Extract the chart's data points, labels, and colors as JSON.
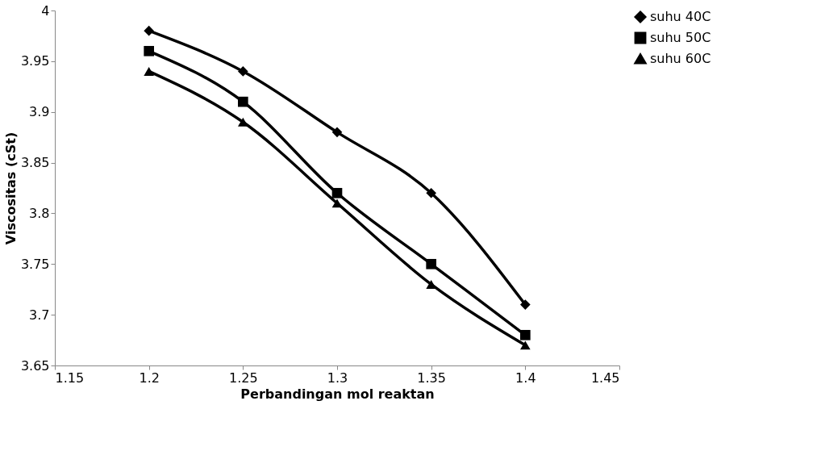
{
  "chart_data": {
    "type": "line",
    "xlabel": "Perbandingan mol reaktan",
    "ylabel": "Viscositas (cSt)",
    "x": [
      1.2,
      1.25,
      1.3,
      1.35,
      1.4
    ],
    "series": [
      {
        "name": "suhu 40C",
        "color": "#000000",
        "marker": "diamond",
        "values": [
          3.98,
          3.94,
          3.88,
          3.82,
          3.71
        ]
      },
      {
        "name": "suhu 50C",
        "color": "#000000",
        "marker": "square",
        "values": [
          3.96,
          3.91,
          3.82,
          3.75,
          3.68
        ]
      },
      {
        "name": "suhu 60C",
        "color": "#000000",
        "marker": "triangle",
        "values": [
          3.94,
          3.89,
          3.81,
          3.73,
          3.67
        ]
      }
    ],
    "xlim": [
      1.15,
      1.45
    ],
    "xticks": [
      1.15,
      1.2,
      1.25,
      1.3,
      1.35,
      1.4,
      1.45
    ],
    "ylim": [
      3.65,
      4
    ],
    "yticks": [
      3.65,
      3.7,
      3.75,
      3.8,
      3.85,
      3.9,
      3.95,
      4
    ],
    "grid": false,
    "legend": "right",
    "line_style": "solid"
  }
}
